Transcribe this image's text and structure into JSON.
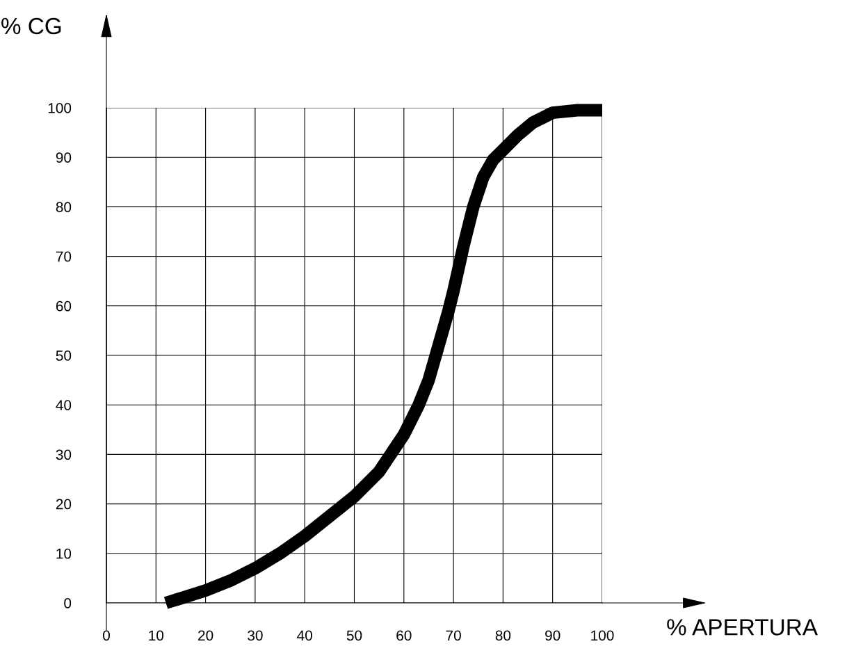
{
  "chart_data": {
    "type": "line",
    "xlabel": "% APERTURA",
    "ylabel": "% CG",
    "x": [
      12,
      20,
      25,
      30,
      35,
      40,
      45,
      50,
      55,
      60,
      63,
      65,
      67,
      69,
      70,
      72,
      74,
      76,
      78,
      80,
      83,
      86,
      90,
      95,
      100
    ],
    "series": [
      {
        "color": "#000000",
        "values": [
          0,
          2.5,
          4.5,
          7,
          10,
          13.5,
          17.5,
          21.5,
          26.5,
          34,
          40,
          45,
          52,
          59,
          63,
          72,
          80,
          86,
          89.5,
          91.5,
          94.5,
          97,
          99,
          99.5,
          99.5
        ]
      }
    ],
    "xlim": [
      0,
      100
    ],
    "ylim": [
      0,
      100
    ],
    "xticks": [
      0,
      10,
      20,
      30,
      40,
      50,
      60,
      70,
      80,
      90,
      100
    ],
    "yticks": [
      0,
      10,
      20,
      30,
      40,
      50,
      60,
      70,
      80,
      90,
      100
    ],
    "grid": true,
    "legend": false,
    "marker": "none",
    "line_style": "solid"
  }
}
